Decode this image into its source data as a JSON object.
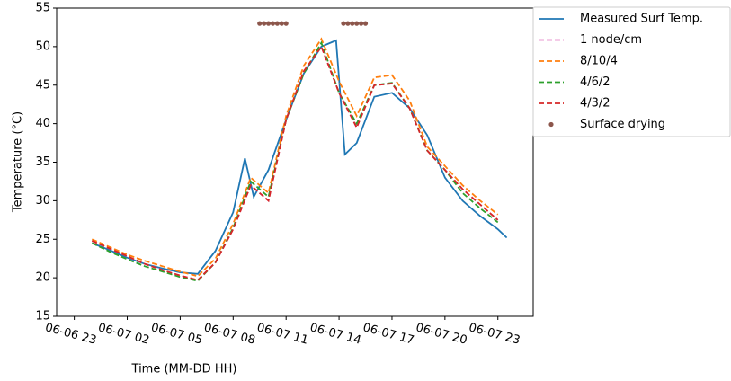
{
  "chart_data": {
    "type": "line",
    "xlabel": "Time (MM-DD HH)",
    "ylabel": "Temperature (°C)",
    "x": [
      "06-07 00",
      "06-07 01",
      "06-07 02",
      "06-07 03",
      "06-07 04",
      "06-07 05",
      "06-07 06",
      "06-07 07",
      "06-07 08",
      "06-07 09",
      "06-07 10",
      "06-07 11",
      "06-07 12",
      "06-07 13",
      "06-07 14",
      "06-07 15",
      "06-07 16",
      "06-07 17",
      "06-07 18",
      "06-07 19",
      "06-07 20",
      "06-07 21",
      "06-07 22",
      "06-07 23"
    ],
    "xlim": [
      "06-06 22",
      "06-08 01"
    ],
    "xticks": [
      "06-06 23",
      "06-07 02",
      "06-07 05",
      "06-07 08",
      "06-07 11",
      "06-07 14",
      "06-07 17",
      "06-07 20",
      "06-07 23"
    ],
    "ylim": [
      15,
      55
    ],
    "yticks": [
      15,
      20,
      25,
      30,
      35,
      40,
      45,
      50,
      55
    ],
    "legend": "outside-upper-right",
    "series": [
      {
        "name": "Measured Surf Temp.",
        "color": "#1f77b4",
        "dash": "solid",
        "x": [
          "06-07 00",
          "06-07 01",
          "06-07 02",
          "06-07 03",
          "06-07 04",
          "06-07 05",
          "06-07 06",
          "06-07 07",
          "06-07 08",
          "06-07 08:40",
          "06-07 09:10",
          "06-07 10",
          "06-07 11",
          "06-07 12",
          "06-07 13",
          "06-07 13:50",
          "06-07 14:20",
          "06-07 15",
          "06-07 16",
          "06-07 17",
          "06-07 18",
          "06-07 19",
          "06-07 20",
          "06-07 21",
          "06-07 22",
          "06-07 23",
          "06-07 23:30"
        ],
        "values": [
          24.5,
          23.6,
          22.6,
          21.8,
          21.2,
          20.7,
          20.5,
          23.5,
          28.5,
          35.5,
          30.5,
          34,
          40.5,
          46.5,
          50,
          50.8,
          36,
          37.5,
          43.5,
          44,
          42,
          38.5,
          33,
          30,
          28,
          26.3,
          25.2
        ]
      },
      {
        "name": "1 node/cm",
        "color": "#e377c2",
        "dash": "dashed",
        "values": [
          24.8,
          23.8,
          22.8,
          21.8,
          21.0,
          20.3,
          19.7,
          22,
          26.3,
          32,
          30,
          40.5,
          46.8,
          50,
          44,
          39.5,
          45,
          45.2,
          42,
          36.5,
          34,
          31.5,
          29.5,
          27.5
        ]
      },
      {
        "name": "8/10/4",
        "color": "#ff7f0e",
        "dash": "dashed",
        "values": [
          25,
          24,
          23,
          22.2,
          21.5,
          20.8,
          20.2,
          22.5,
          27,
          33,
          31,
          41,
          47.5,
          51,
          45.5,
          41,
          46,
          46.3,
          43,
          37,
          34.5,
          32,
          30,
          28.2
        ]
      },
      {
        "name": "4/6/2",
        "color": "#2ca02c",
        "dash": "dashed",
        "values": [
          24.5,
          23.4,
          22.4,
          21.5,
          20.8,
          20.1,
          19.6,
          22,
          26.5,
          32.5,
          30.5,
          40.5,
          46.5,
          50.5,
          44,
          40,
          45,
          45.3,
          42,
          36.5,
          34,
          31,
          29,
          27.2
        ]
      },
      {
        "name": "4/3/2",
        "color": "#d62728",
        "dash": "dashed",
        "values": [
          24.8,
          23.8,
          22.8,
          21.8,
          21.0,
          20.3,
          19.7,
          22,
          26.3,
          32,
          30,
          40.5,
          46.8,
          50,
          44,
          39.5,
          45,
          45.2,
          42,
          36.5,
          34,
          31.5,
          29.5,
          27.5
        ]
      },
      {
        "name": "Surface drying",
        "color": "#8c564b",
        "marker": "dot",
        "x": [
          "06-07 09:30",
          "06-07 09:45",
          "06-07 10:00",
          "06-07 10:15",
          "06-07 10:30",
          "06-07 10:45",
          "06-07 11:00",
          "06-07 14:15",
          "06-07 14:30",
          "06-07 14:45",
          "06-07 15:00",
          "06-07 15:15",
          "06-07 15:30"
        ],
        "values": [
          53,
          53,
          53,
          53,
          53,
          53,
          53,
          53,
          53,
          53,
          53,
          53,
          53
        ]
      }
    ]
  }
}
